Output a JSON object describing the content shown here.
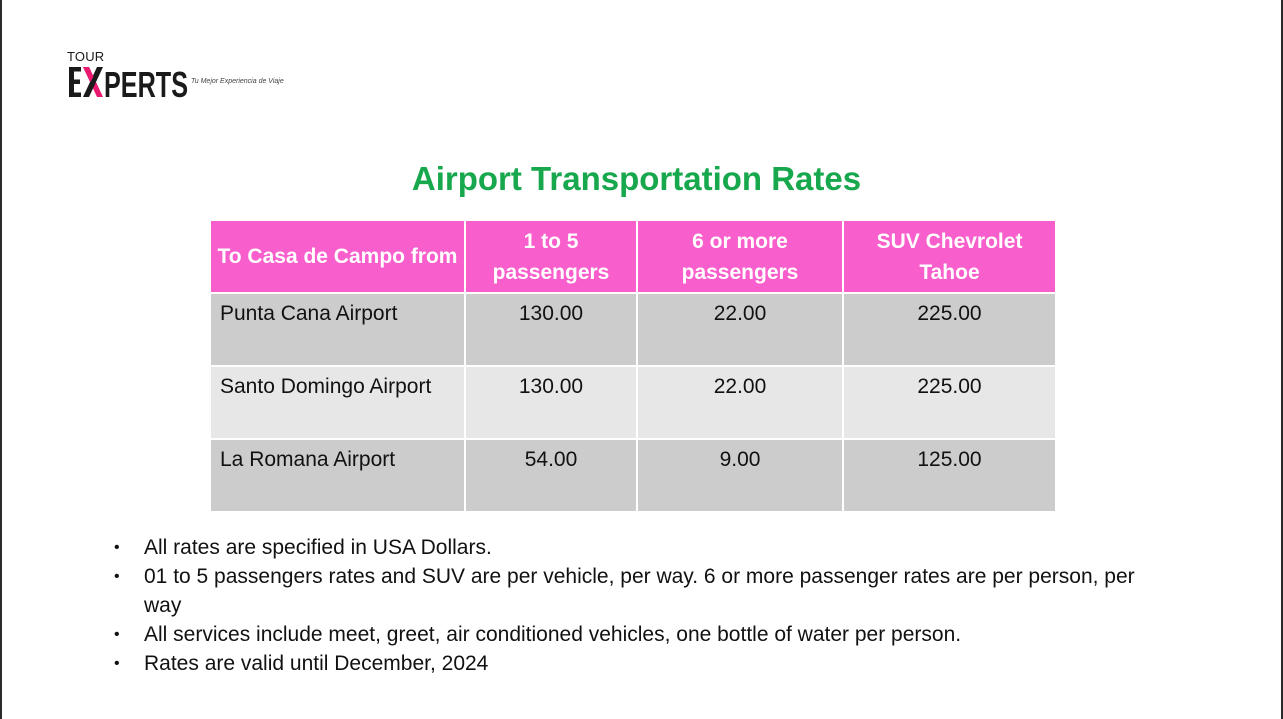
{
  "logo": {
    "tour": "TOUR",
    "name": "EXPERTS",
    "tagline": "Tu Mejor Experiencia de Viaje",
    "accent_color": "#e8196f"
  },
  "title": "Airport Transportation Rates",
  "colors": {
    "title": "#17a84d",
    "header_bg": "#f95fcc",
    "row_dark": "#cccccc",
    "row_light": "#e7e7e7"
  },
  "table": {
    "headers": [
      "To Casa de Campo from",
      "1 to 5 passengers",
      "6 or more passengers",
      "SUV Chevrolet Tahoe"
    ],
    "rows": [
      [
        "Punta Cana Airport",
        "130.00",
        "22.00",
        "225.00"
      ],
      [
        "Santo Domingo Airport",
        "130.00",
        "22.00",
        "225.00"
      ],
      [
        "La Romana Airport",
        "54.00",
        "9.00",
        "125.00"
      ]
    ]
  },
  "notes": [
    "All rates are specified in USA Dollars.",
    "01 to 5 passengers rates and SUV are per vehicle, per way.  6 or more passenger rates are per person, per way",
    "All services include meet, greet, air conditioned vehicles, one bottle of water per person.",
    "Rates are valid until December, 2024"
  ]
}
